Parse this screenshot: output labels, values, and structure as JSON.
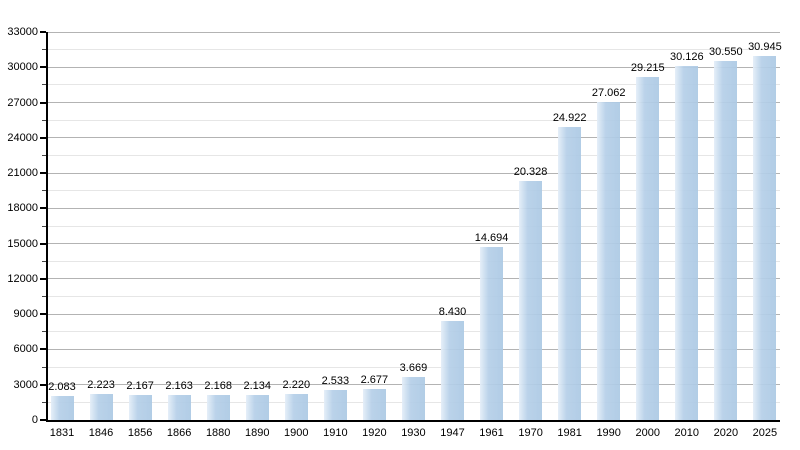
{
  "chart_data": {
    "type": "bar",
    "title": "",
    "xlabel": "",
    "ylabel": "",
    "categories": [
      "1831",
      "1846",
      "1856",
      "1866",
      "1880",
      "1890",
      "1900",
      "1910",
      "1920",
      "1930",
      "1947",
      "1961",
      "1970",
      "1981",
      "1990",
      "2000",
      "2010",
      "2020",
      "2025"
    ],
    "values": [
      2083,
      2223,
      2167,
      2163,
      2168,
      2134,
      2220,
      2533,
      2677,
      3669,
      8430,
      14694,
      20328,
      24922,
      27062,
      29215,
      30126,
      30550,
      30945
    ],
    "value_labels": [
      "2.083",
      "2.223",
      "2.167",
      "2.163",
      "2.168",
      "2.134",
      "2.220",
      "2.533",
      "2.677",
      "3.669",
      "8.430",
      "14.694",
      "20.328",
      "24.922",
      "27.062",
      "29.215",
      "30.126",
      "30.550",
      "30.945"
    ],
    "ylim": [
      0,
      33000
    ],
    "ytick_step": 3000,
    "minor_tick_step": 1500,
    "ytick_labels": [
      "0",
      "3000",
      "6000",
      "9000",
      "12000",
      "15000",
      "18000",
      "21000",
      "24000",
      "27000",
      "30000",
      "33000"
    ],
    "grid": "on",
    "legend": "none",
    "colors": {
      "bar": "#aecbe5",
      "bar_highlight": "#e4eef8",
      "grid_major": "#b3b3b3",
      "grid_minor": "#e6e6e6",
      "axis": "#000000",
      "text": "#000000",
      "background": "#ffffff"
    }
  }
}
